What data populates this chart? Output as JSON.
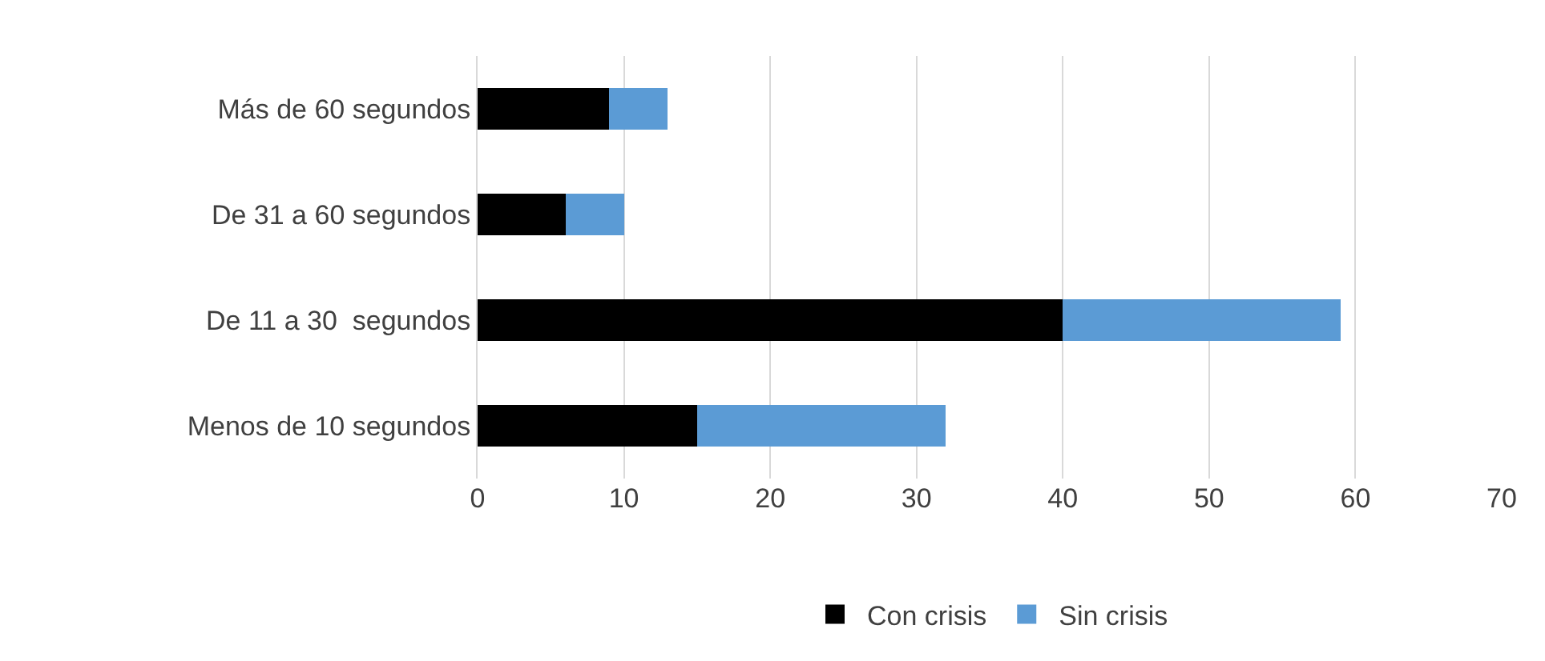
{
  "chart_data": {
    "type": "bar",
    "orientation": "horizontal",
    "stacked": true,
    "categories": [
      "Más de 60 segundos",
      "De 31 a 60 segundos",
      "De 11 a 30  segundos",
      "Menos de 10 segundos"
    ],
    "series": [
      {
        "name": "Con crisis",
        "color": "#000000",
        "values": [
          9,
          6,
          40,
          15
        ]
      },
      {
        "name": "Sin crisis",
        "color": "#5b9bd5",
        "values": [
          4,
          4,
          19,
          17
        ]
      }
    ],
    "xlim": [
      0,
      70
    ],
    "xticks": [
      0,
      10,
      20,
      30,
      40,
      50,
      60,
      70
    ],
    "grid": "x",
    "legend": "bottom"
  }
}
